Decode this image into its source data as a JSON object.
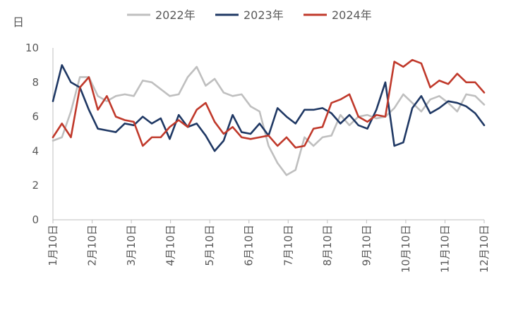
{
  "chart_data": {
    "type": "line",
    "ylabel": "日",
    "ylim": [
      0,
      10
    ],
    "yticks": [
      "0",
      "2",
      "4",
      "6",
      "8",
      "10"
    ],
    "x_tick_labels": [
      "1月10日",
      "2月10日",
      "3月10日",
      "4月10日",
      "5月10日",
      "6月10日",
      "7月10日",
      "8月10日",
      "9月10日",
      "10月10日",
      "11月10日",
      "12月10日"
    ],
    "legend_position": "top",
    "series": [
      {
        "name": "2022年",
        "color": "#BFBFBF",
        "values": [
          4.6,
          4.8,
          6.3,
          8.3,
          8.3,
          7.2,
          6.9,
          7.2,
          7.3,
          7.2,
          8.1,
          8.0,
          7.6,
          7.2,
          7.3,
          8.3,
          8.9,
          7.8,
          8.2,
          7.4,
          7.2,
          7.3,
          6.6,
          6.3,
          4.3,
          3.3,
          2.6,
          2.9,
          4.8,
          4.3,
          4.8,
          4.9,
          6.1,
          5.5,
          6.0,
          6.1,
          5.9,
          6.0,
          6.5,
          7.3,
          6.8,
          6.3,
          7.0,
          7.2,
          6.8,
          6.3,
          7.3,
          7.2,
          6.7
        ]
      },
      {
        "name": "2023年",
        "color": "#1F3864",
        "values": [
          6.9,
          9.0,
          8.0,
          7.7,
          6.4,
          5.3,
          5.2,
          5.1,
          5.6,
          5.5,
          6.0,
          5.6,
          5.9,
          4.7,
          6.1,
          5.4,
          5.6,
          4.9,
          4.0,
          4.6,
          6.1,
          5.1,
          5.0,
          5.6,
          4.9,
          6.5,
          6.0,
          5.6,
          6.4,
          6.4,
          6.5,
          6.2,
          5.6,
          6.1,
          5.5,
          5.3,
          6.4,
          8.0,
          4.3,
          4.5,
          6.5,
          7.2,
          6.2,
          6.5,
          6.9,
          6.8,
          6.6,
          6.2,
          5.5
        ]
      },
      {
        "name": "2024年",
        "color": "#C0392B",
        "values": [
          4.8,
          5.6,
          4.8,
          7.7,
          8.3,
          6.4,
          7.2,
          6.0,
          5.8,
          5.7,
          4.3,
          4.8,
          4.8,
          5.4,
          5.8,
          5.4,
          6.4,
          6.8,
          5.7,
          5.0,
          5.4,
          4.8,
          4.7,
          4.8,
          4.9,
          4.3,
          4.8,
          4.2,
          4.3,
          5.3,
          5.4,
          6.8,
          7.0,
          7.3,
          6.0,
          5.7,
          6.1,
          6.0,
          9.2,
          8.9,
          9.3,
          9.1,
          7.7,
          8.1,
          7.9,
          8.5,
          8.0,
          8.0,
          7.4
        ]
      }
    ]
  }
}
